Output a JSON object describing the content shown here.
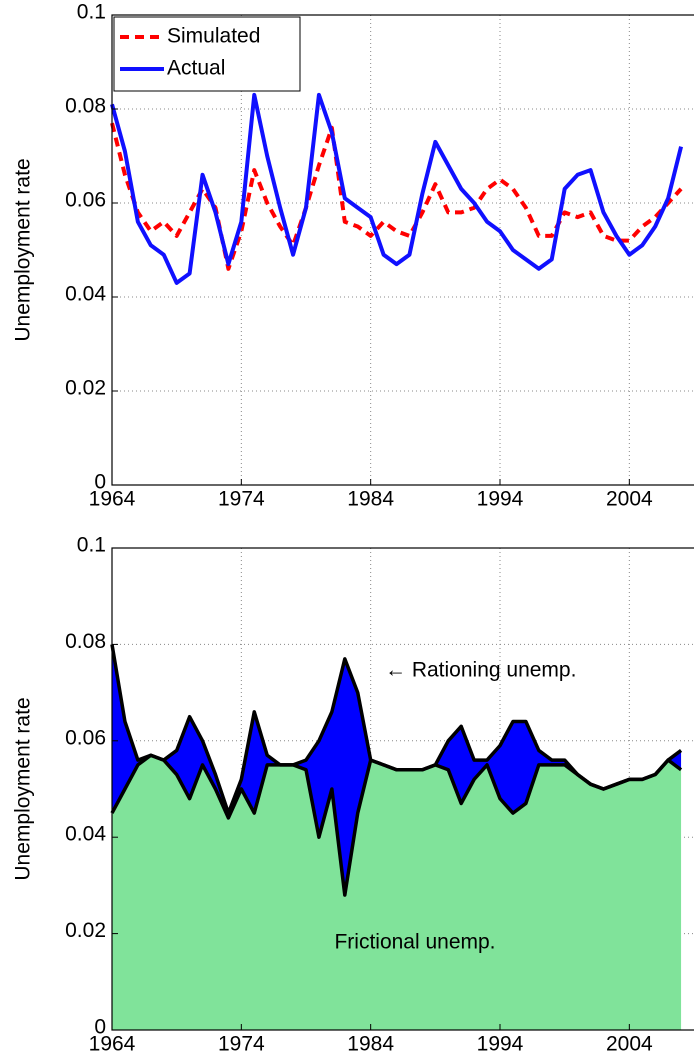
{
  "chart_data": [
    {
      "type": "line",
      "ylabel": "Unemployment rate",
      "grid": true,
      "legend": "upper left",
      "xlim": [
        1964,
        2009
      ],
      "ylim": [
        0,
        0.1
      ],
      "xticks": [
        1964,
        1974,
        1984,
        1994,
        2004
      ],
      "yticks": [
        0,
        0.02,
        0.04,
        0.06,
        0.08,
        0.1
      ],
      "x": [
        1964,
        1965,
        1966,
        1967,
        1968,
        1969,
        1970,
        1971,
        1972,
        1973,
        1974,
        1975,
        1976,
        1977,
        1978,
        1979,
        1980,
        1981,
        1982,
        1983,
        1984,
        1985,
        1986,
        1987,
        1988,
        1989,
        1990,
        1991,
        1992,
        1993,
        1994,
        1995,
        1996,
        1997,
        1998,
        1999,
        2000,
        2001,
        2002,
        2003,
        2004,
        2005,
        2006,
        2007,
        2008
      ],
      "series": [
        {
          "name": "Simulated",
          "color": "#ff0000",
          "linestyle": "dashed",
          "values": [
            0.077,
            0.066,
            0.058,
            0.054,
            0.056,
            0.053,
            0.058,
            0.063,
            0.059,
            0.046,
            0.054,
            0.067,
            0.06,
            0.055,
            0.051,
            0.059,
            0.068,
            0.076,
            0.056,
            0.055,
            0.053,
            0.056,
            0.054,
            0.053,
            0.058,
            0.064,
            0.058,
            0.058,
            0.059,
            0.063,
            0.065,
            0.063,
            0.059,
            0.053,
            0.053,
            0.058,
            0.057,
            0.058,
            0.053,
            0.052,
            0.052,
            0.055,
            0.057,
            0.06,
            0.063
          ]
        },
        {
          "name": "Actual",
          "color": "#1010ff",
          "linestyle": "solid",
          "values": [
            0.081,
            0.071,
            0.056,
            0.051,
            0.049,
            0.043,
            0.045,
            0.066,
            0.058,
            0.047,
            0.056,
            0.083,
            0.07,
            0.059,
            0.049,
            0.059,
            0.083,
            0.075,
            0.061,
            0.059,
            0.057,
            0.049,
            0.047,
            0.049,
            0.062,
            0.073,
            0.068,
            0.063,
            0.06,
            0.056,
            0.054,
            0.05,
            0.048,
            0.046,
            0.048,
            0.063,
            0.066,
            0.067,
            0.058,
            0.053,
            0.049,
            0.051,
            0.055,
            0.061,
            0.072
          ]
        }
      ]
    },
    {
      "type": "area",
      "ylabel": "Unemployment rate",
      "grid": true,
      "xlim": [
        1964,
        2009
      ],
      "ylim": [
        0,
        0.1
      ],
      "xticks": [
        1964,
        1974,
        1984,
        1994,
        2004
      ],
      "yticks": [
        0,
        0.02,
        0.04,
        0.06,
        0.08,
        0.1
      ],
      "x": [
        1964,
        1965,
        1966,
        1967,
        1968,
        1969,
        1970,
        1971,
        1972,
        1973,
        1974,
        1975,
        1976,
        1977,
        1978,
        1979,
        1980,
        1981,
        1982,
        1983,
        1984,
        1985,
        1986,
        1987,
        1988,
        1989,
        1990,
        1991,
        1992,
        1993,
        1994,
        1995,
        1996,
        1997,
        1998,
        1999,
        2000,
        2001,
        2002,
        2003,
        2004,
        2005,
        2006,
        2007,
        2008
      ],
      "series": [
        {
          "name": "Frictional unemp.",
          "color": "#80e39a",
          "values": [
            0.045,
            0.05,
            0.055,
            0.057,
            0.056,
            0.053,
            0.048,
            0.055,
            0.05,
            0.044,
            0.05,
            0.045,
            0.055,
            0.055,
            0.055,
            0.054,
            0.04,
            0.05,
            0.028,
            0.045,
            0.056,
            0.055,
            0.054,
            0.054,
            0.054,
            0.055,
            0.054,
            0.047,
            0.052,
            0.055,
            0.048,
            0.045,
            0.047,
            0.055,
            0.055,
            0.055,
            0.053,
            0.051,
            0.05,
            0.051,
            0.052,
            0.052,
            0.053,
            0.056,
            0.054
          ]
        },
        {
          "name": "← Rationing unemp.",
          "color": "#0000ff",
          "values": [
            0.035,
            0.014,
            0.001,
            0,
            0,
            0.005,
            0.017,
            0.005,
            0.003,
            0.001,
            0.002,
            0.021,
            0.002,
            0,
            0,
            0.002,
            0.02,
            0.016,
            0.049,
            0.025,
            0,
            0,
            0,
            0,
            0,
            0,
            0.006,
            0.016,
            0.004,
            0.001,
            0.011,
            0.019,
            0.017,
            0.003,
            0.001,
            0.001,
            0,
            0,
            0,
            0,
            0,
            0,
            0,
            0,
            0.004
          ]
        }
      ]
    }
  ]
}
